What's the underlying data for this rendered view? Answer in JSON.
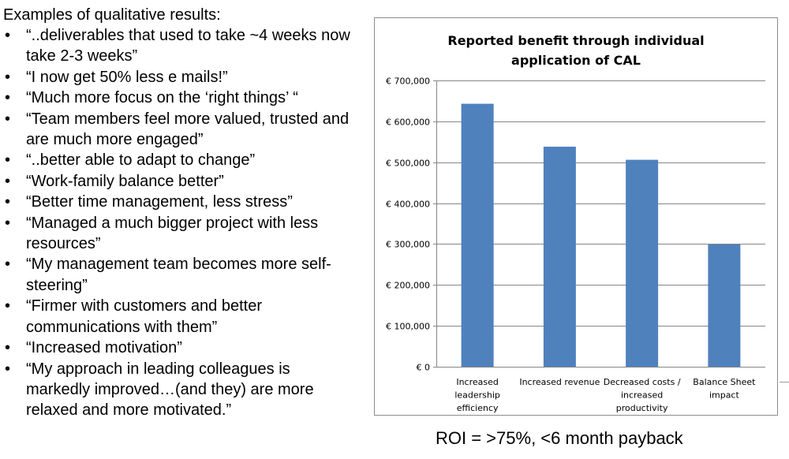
{
  "slide": {
    "heading": "Examples of qualitative results:",
    "bullet_char": "•",
    "quotes": [
      "“..deliverables that used to take ~4 weeks now take 2-3 weeks”",
      "“I now get 50% less e mails!”",
      "“Much more focus on the ‘right things’ “",
      "“Team members feel more valued, trusted and are much more engaged”",
      "“..better able to adapt to change”",
      "“Work-family balance better”",
      "“Better time management, less stress”",
      "“Managed a much bigger project with less resources”",
      "“My management team becomes more self-steering”",
      "“Firmer with customers and better communications with them”",
      "“Increased motivation”",
      "“My approach in leading colleagues is markedly improved…(and they) are more relaxed and more motivated.”"
    ],
    "roi": "ROI = >75%, <6 month payback"
  },
  "chart_data": {
    "type": "bar",
    "title_lines": [
      "Reported benefit through individual",
      "application of CAL"
    ],
    "categories": [
      [
        "Increased",
        "leadership",
        "efficiency"
      ],
      [
        "Increased revenue"
      ],
      [
        "Decreased costs /",
        "increased",
        "productivity"
      ],
      [
        "Balance Sheet",
        "impact"
      ]
    ],
    "values": [
      643000,
      538000,
      506000,
      299000
    ],
    "ylim": [
      0,
      700000
    ],
    "yticks": [
      0,
      100000,
      200000,
      300000,
      400000,
      500000,
      600000,
      700000
    ],
    "ytick_labels": [
      "€ 0",
      "€ 100,000",
      "€ 200,000",
      "€ 300,000",
      "€ 400,000",
      "€ 500,000",
      "€ 600,000",
      "€ 700,000"
    ],
    "grid": true,
    "legend": "none",
    "bar_color": "#4f81bd",
    "grid_color": "#868686"
  }
}
